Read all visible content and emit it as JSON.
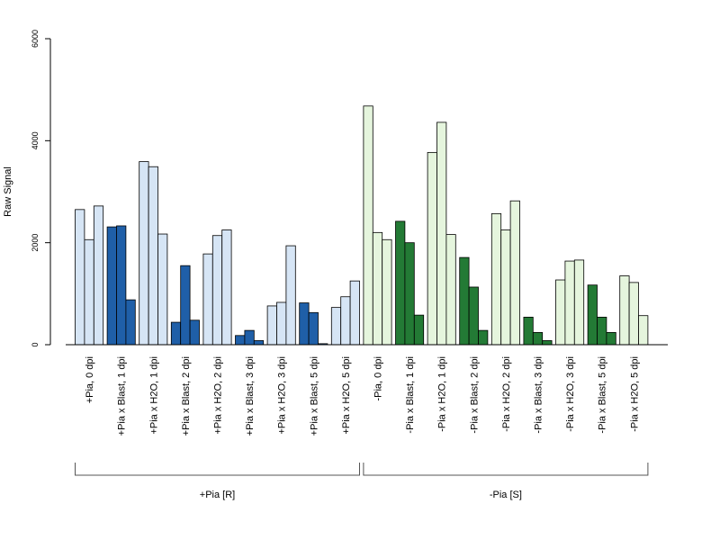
{
  "chart_data": {
    "type": "bar",
    "ylabel": "Raw Signal",
    "xlabel": "",
    "ylim": [
      0,
      6000
    ],
    "yticks": [
      "0",
      "2000",
      "4000",
      "6000"
    ],
    "grid": false,
    "colors": {
      "light_blue": "#d6e5f5",
      "dark_blue": "#1f5fa8",
      "light_green": "#e5f5dd",
      "dark_green": "#237a35",
      "stroke": "#000000"
    },
    "categories": [
      {
        "label": "+Pia, 0 dpi",
        "values": [
          2650,
          2060,
          2720
        ],
        "color": "light_blue"
      },
      {
        "label": "+Pia x Blast, 1 dpi",
        "values": [
          2310,
          2330,
          880
        ],
        "color": "dark_blue"
      },
      {
        "label": "+Pia x H2O, 1 dpi",
        "values": [
          3590,
          3490,
          2170
        ],
        "color": "light_blue"
      },
      {
        "label": "+Pia x Blast, 2 dpi",
        "values": [
          440,
          1550,
          480
        ],
        "color": "dark_blue"
      },
      {
        "label": "+Pia x H2O, 2 dpi",
        "values": [
          1780,
          2140,
          2250
        ],
        "color": "light_blue"
      },
      {
        "label": "+Pia x Blast, 3 dpi",
        "values": [
          180,
          280,
          80
        ],
        "color": "dark_blue"
      },
      {
        "label": "+Pia x H2O, 3 dpi",
        "values": [
          760,
          830,
          1940
        ],
        "color": "light_blue"
      },
      {
        "label": "+Pia x Blast, 5 dpi",
        "values": [
          820,
          630,
          20
        ],
        "color": "dark_blue"
      },
      {
        "label": "+Pia x H2O, 5 dpi",
        "values": [
          730,
          940,
          1250
        ],
        "color": "light_blue"
      },
      {
        "label": "-Pia, 0 dpi",
        "values": [
          4680,
          2200,
          2060
        ],
        "color": "light_green"
      },
      {
        "label": "-Pia x Blast, 1 dpi",
        "values": [
          2420,
          2000,
          580
        ],
        "color": "dark_green"
      },
      {
        "label": "-Pia x H2O, 1 dpi",
        "values": [
          3770,
          4360,
          2160
        ],
        "color": "light_green"
      },
      {
        "label": "-Pia x Blast, 2 dpi",
        "values": [
          1710,
          1130,
          280
        ],
        "color": "dark_green"
      },
      {
        "label": "-Pia x H2O, 2 dpi",
        "values": [
          2570,
          2250,
          2820
        ],
        "color": "light_green"
      },
      {
        "label": "-Pia x Blast, 3 dpi",
        "values": [
          540,
          240,
          80
        ],
        "color": "dark_green"
      },
      {
        "label": "-Pia x H2O, 3 dpi",
        "values": [
          1270,
          1640,
          1660
        ],
        "color": "light_green"
      },
      {
        "label": "-Pia x Blast, 5 dpi",
        "values": [
          1170,
          540,
          240
        ],
        "color": "dark_green"
      },
      {
        "label": "-Pia x H2O, 5 dpi",
        "values": [
          1350,
          1220,
          570
        ],
        "color": "light_green"
      }
    ],
    "groups": [
      {
        "label": "+Pia [R]",
        "from": 0,
        "to": 8
      },
      {
        "label": "-Pia [S]",
        "from": 9,
        "to": 17
      }
    ]
  }
}
